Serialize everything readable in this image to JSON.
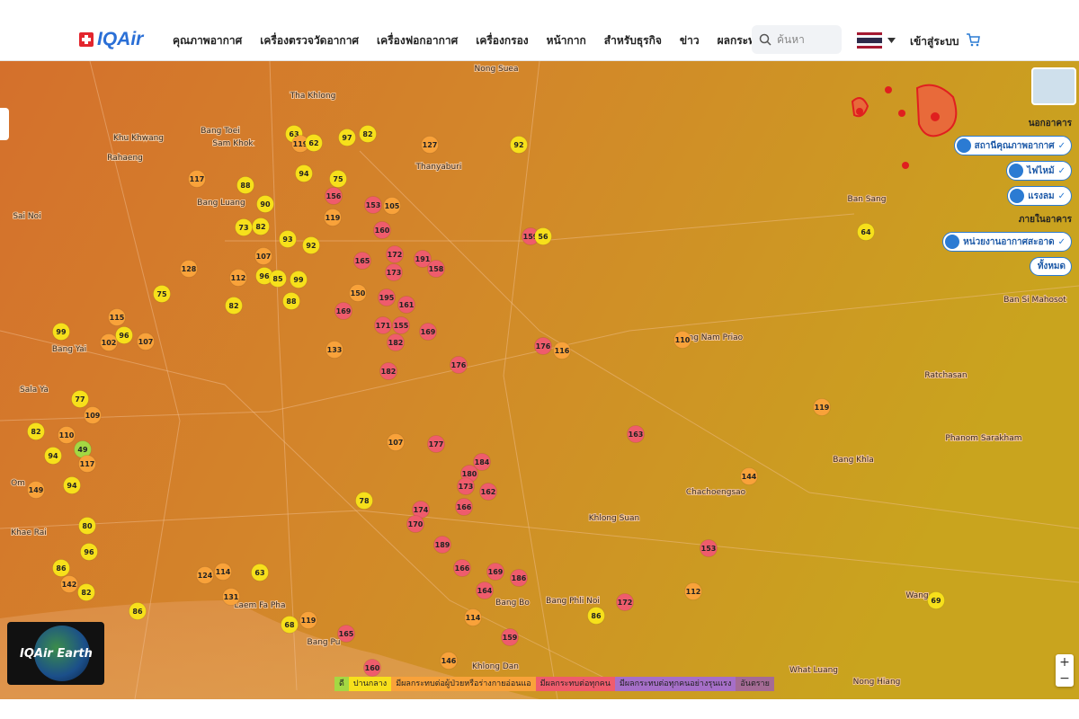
{
  "header": {
    "logo": "IQAir",
    "nav": [
      "คุณภาพอากาศ",
      "เครื่องตรวจวัดอากาศ",
      "เครื่องฟอกอากาศ",
      "เครื่องกรอง",
      "หน้ากาก",
      "สำหรับธุรกิจ",
      "ข่าว",
      "ผลกระทบ"
    ],
    "search_placeholder": "ค้นหา",
    "login": "เข้าสู่ระบบ"
  },
  "layers": {
    "outdoor_title": "นอกอาคาร",
    "outdoor": [
      "สถานีคุณภาพอากาศ",
      "ไฟไหม้",
      "แรงลม"
    ],
    "indoor_title": "ภายในอาคาร",
    "indoor": [
      "หน่วยงานอากาศสะอาด"
    ],
    "filter": "ทั้งหมด"
  },
  "map": {
    "places": [
      "Nong Suea",
      "Tha Khlong",
      "Khu Khwang",
      "Bang Toei",
      "Sam Khok",
      "Rahaeng",
      "Thanyaburi",
      "Sai Noi",
      "Bang Luang",
      "Bang Yai",
      "Sala Ya",
      "Om",
      "Khae Rai",
      "Ban Sang",
      "Bang Nam Priao",
      "Ratchasan",
      "Phanom Sarakham",
      "Bang Khla",
      "Chachoengsao",
      "Khlong Suan",
      "Bang Phli Noi",
      "Bang Bo",
      "Laem Fa Pha",
      "Bang Pu",
      "Khlong Dan",
      "What Luang",
      "Nong Hiang",
      "Wang",
      "Ban Si Mahosot"
    ],
    "stations": [
      63,
      119,
      62,
      97,
      82,
      127,
      92,
      94,
      75,
      117,
      88,
      156,
      153,
      105,
      119,
      90,
      73,
      82,
      93,
      92,
      160,
      159,
      56,
      64,
      128,
      107,
      112,
      96,
      85,
      99,
      172,
      191,
      158,
      173,
      165,
      150,
      195,
      161,
      75,
      88,
      82,
      169,
      115,
      99,
      102,
      96,
      107,
      171,
      155,
      169,
      182,
      133,
      176,
      116,
      110,
      176,
      182,
      119,
      163,
      144,
      153,
      112,
      69,
      86,
      172,
      49,
      110,
      82,
      77,
      109,
      117,
      94,
      149,
      94,
      80,
      96,
      86,
      142,
      82,
      86,
      131,
      68,
      119,
      165,
      160,
      146,
      159,
      114,
      78,
      107,
      177,
      184,
      180,
      173,
      162,
      166,
      174,
      170,
      189,
      166,
      169,
      186,
      164,
      63,
      124,
      114
    ]
  },
  "legend": [
    {
      "label": "ดี",
      "color": "#a4d843"
    },
    {
      "label": "ปานกลาง",
      "color": "#f7e01b"
    },
    {
      "label": "มีผลกระทบต่อผู้ป่วยหรือร่างกายอ่อนแอ",
      "color": "#f9a23a"
    },
    {
      "label": "มีผลกระทบต่อทุกคน",
      "color": "#ef5c6c"
    },
    {
      "label": "มีผลกระทบต่อทุกคนอย่างรุนแรง",
      "color": "#a66fc8"
    },
    {
      "label": "อันตราย",
      "color": "#a56b95"
    }
  ],
  "earth_widget": "IQAir Earth",
  "zoom": [
    "+",
    "−"
  ]
}
